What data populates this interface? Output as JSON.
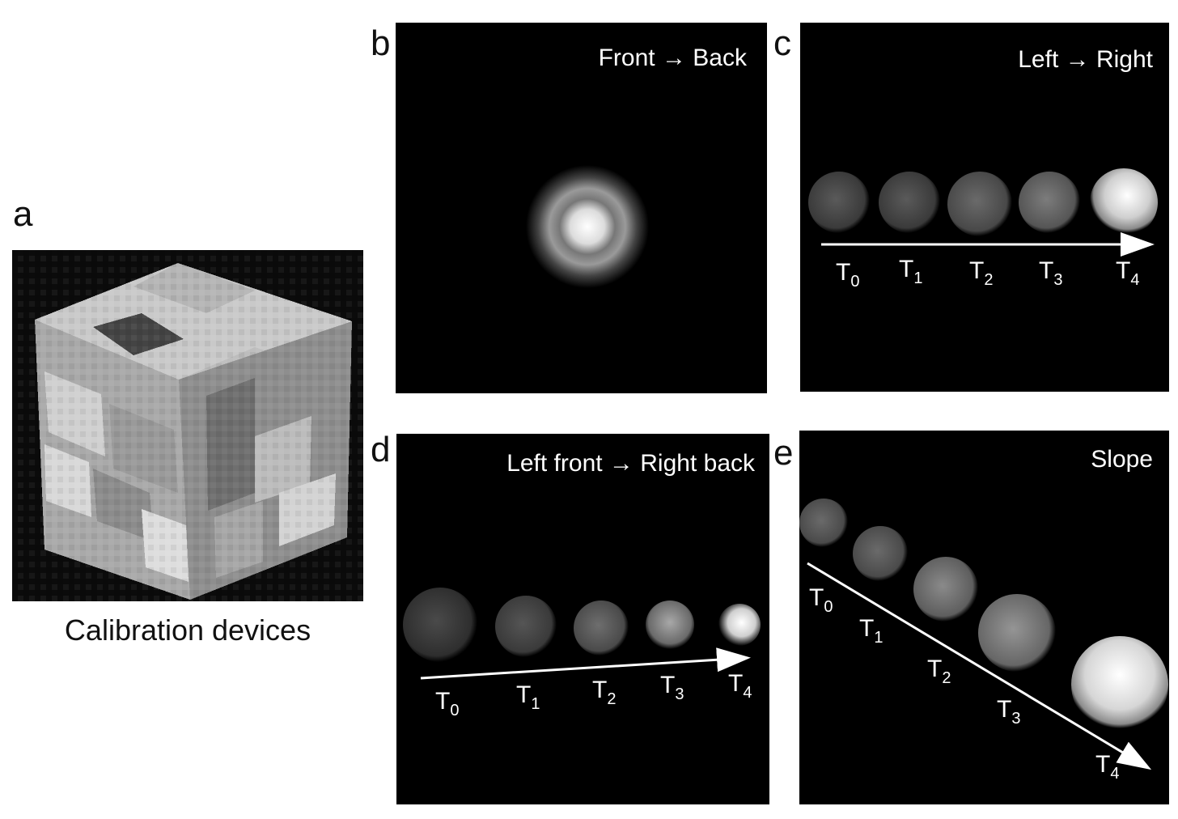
{
  "panels": {
    "a": {
      "letter": "a",
      "caption": "Calibration devices"
    },
    "b": {
      "letter": "b",
      "title": "Front → Back"
    },
    "c": {
      "letter": "c",
      "title": "Left → Right",
      "labels": [
        {
          "base": "T",
          "sub": "0"
        },
        {
          "base": "T",
          "sub": "1"
        },
        {
          "base": "T",
          "sub": "2"
        },
        {
          "base": "T",
          "sub": "3"
        },
        {
          "base": "T",
          "sub": "4"
        }
      ]
    },
    "d": {
      "letter": "d",
      "title": "Left front → Right back",
      "labels": [
        {
          "base": "T",
          "sub": "0"
        },
        {
          "base": "T",
          "sub": "1"
        },
        {
          "base": "T",
          "sub": "2"
        },
        {
          "base": "T",
          "sub": "3"
        },
        {
          "base": "T",
          "sub": "4"
        }
      ]
    },
    "e": {
      "letter": "e",
      "title": "Slope",
      "labels": [
        {
          "base": "T",
          "sub": "0"
        },
        {
          "base": "T",
          "sub": "1"
        },
        {
          "base": "T",
          "sub": "2"
        },
        {
          "base": "T",
          "sub": "3"
        },
        {
          "base": "T",
          "sub": "4"
        }
      ]
    }
  },
  "colors": {
    "panel_bg": "#000000",
    "text": "#ffffff",
    "page_bg": "#ffffff"
  }
}
